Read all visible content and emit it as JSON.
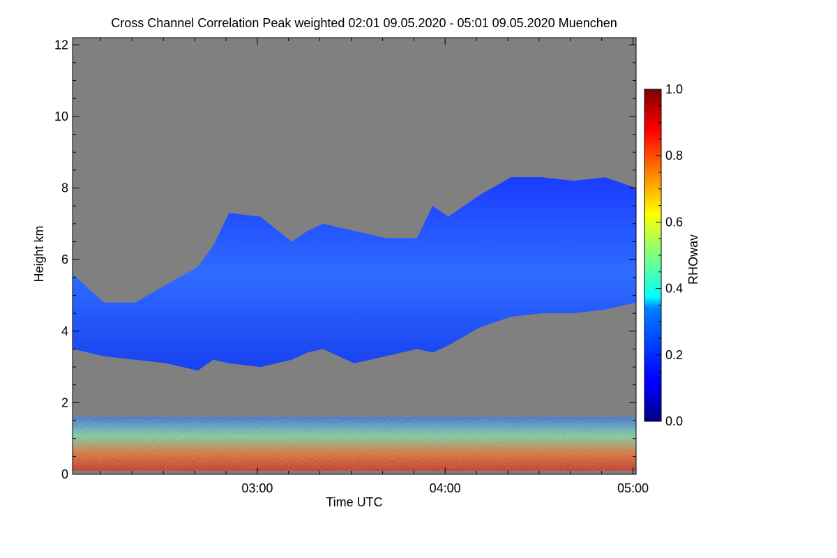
{
  "chart_data": {
    "type": "heatmap",
    "title": "Cross Channel Correlation Peak weighted   02:01 09.05.2020 - 05:01 09.05.2020 Muenchen",
    "xlabel": "Time UTC",
    "ylabel": "Height km",
    "colorbar_label": "RHOwav",
    "x_range": [
      "02:01",
      "05:01"
    ],
    "x_ticks": [
      "03:00",
      "04:00",
      "05:00"
    ],
    "y_range": [
      0,
      12.2
    ],
    "y_ticks": [
      0,
      2,
      4,
      6,
      8,
      10,
      12
    ],
    "color_range": [
      0.0,
      1.0
    ],
    "color_ticks": [
      0.0,
      0.2,
      0.4,
      0.6,
      0.8,
      1.0
    ],
    "colormap": "jet",
    "background_color": "#808080",
    "regions": [
      {
        "name": "cloud layer",
        "rho_range": [
          0.05,
          0.25
        ],
        "time_minutes": [
          0,
          10,
          20,
          30,
          40,
          45,
          50,
          60,
          70,
          75,
          80,
          90,
          100,
          110,
          115,
          120,
          130,
          140,
          150,
          160,
          170,
          180
        ],
        "base_km": [
          3.5,
          3.3,
          3.2,
          3.1,
          2.9,
          3.2,
          3.1,
          3.0,
          3.2,
          3.4,
          3.5,
          3.1,
          3.3,
          3.5,
          3.4,
          3.6,
          4.1,
          4.4,
          4.5,
          4.5,
          4.6,
          4.8
        ],
        "top_km": [
          5.6,
          4.8,
          4.8,
          5.3,
          5.8,
          6.4,
          7.3,
          7.2,
          6.5,
          6.8,
          7.0,
          6.8,
          6.6,
          6.6,
          7.5,
          7.2,
          7.8,
          8.3,
          8.3,
          8.2,
          8.3,
          8.0
        ]
      },
      {
        "name": "boundary layer aerosol",
        "rho_range": [
          0.2,
          1.0
        ],
        "base_km": 0.1,
        "top_km": 1.6
      }
    ]
  }
}
